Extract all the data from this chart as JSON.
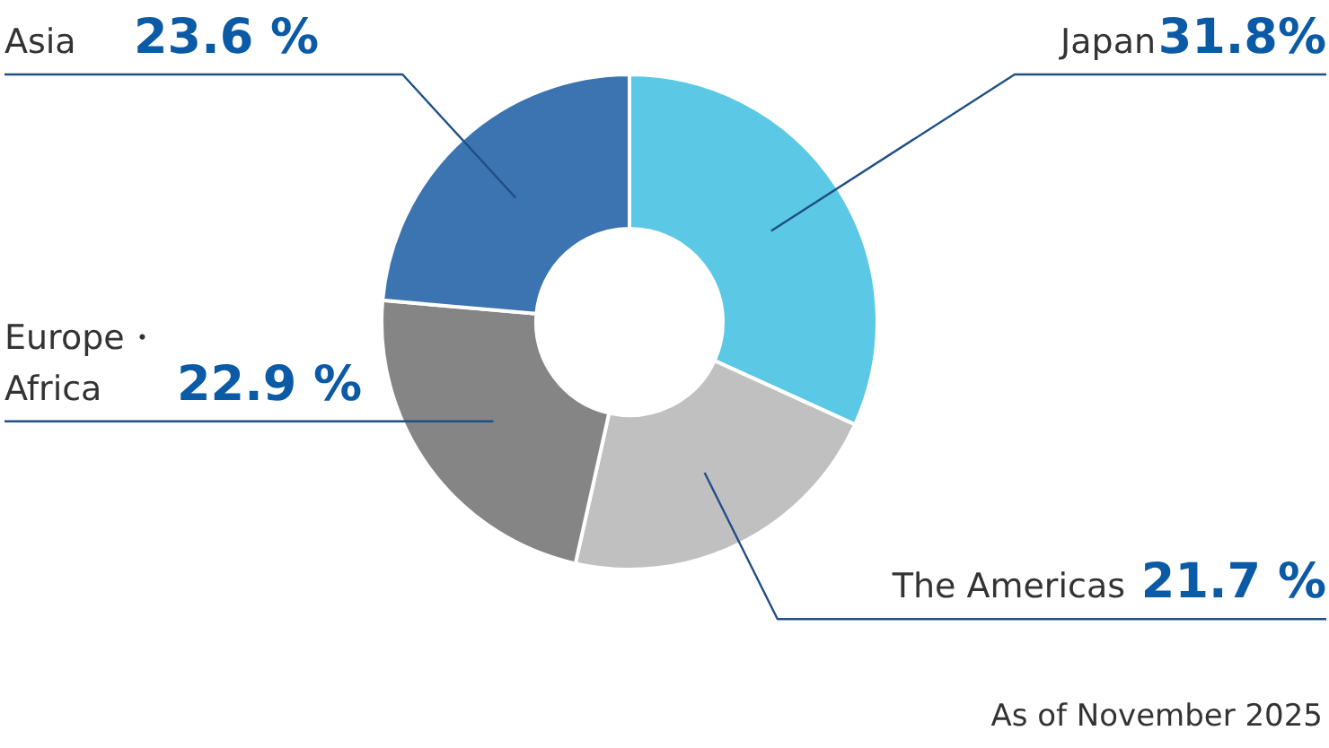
{
  "chart_data": {
    "type": "donut",
    "categories": [
      "Japan",
      "The Americas",
      "Europe・\nAfrica",
      "Asia"
    ],
    "values": [
      31.8,
      21.7,
      22.9,
      23.6
    ],
    "colors": [
      "#5bc8e6",
      "#c0c0c0",
      "#858585",
      "#3b74b0"
    ],
    "value_labels": [
      "31.8%",
      "21.7 %",
      "22.9 %",
      "23.6 %"
    ],
    "annotations": [
      "As of November 2025"
    ]
  }
}
